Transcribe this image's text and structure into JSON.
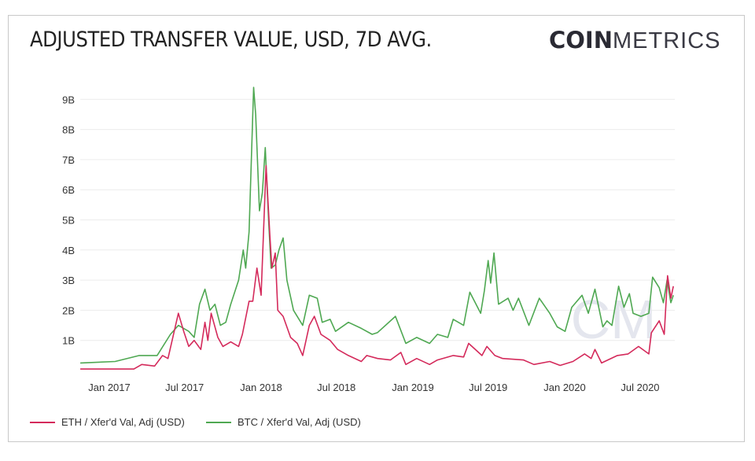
{
  "title": "ADJUSTED TRANSFER VALUE, USD, 7D AVG.",
  "logo": {
    "bold": "COIN",
    "light": "METRICS"
  },
  "watermark": "CM",
  "chart_data": {
    "type": "line",
    "title": "ADJUSTED TRANSFER VALUE, USD, 7D AVG.",
    "xlabel": "",
    "ylabel": "",
    "ylim": [
      0,
      9.6
    ],
    "xlim": [
      "2016-10-23",
      "2020-09-19"
    ],
    "y_unit": "billions USD",
    "y_ticks": [
      {
        "v": 1,
        "label": "1B"
      },
      {
        "v": 2,
        "label": "2B"
      },
      {
        "v": 3,
        "label": "3B"
      },
      {
        "v": 4,
        "label": "4B"
      },
      {
        "v": 5,
        "label": "5B"
      },
      {
        "v": 6,
        "label": "6B"
      },
      {
        "v": 7,
        "label": "7B"
      },
      {
        "v": 8,
        "label": "8B"
      },
      {
        "v": 9,
        "label": "9B"
      }
    ],
    "x_ticks": [
      {
        "d": "2017-01-01",
        "label": "Jan 2017"
      },
      {
        "d": "2017-07-01",
        "label": "Jul 2017"
      },
      {
        "d": "2018-01-01",
        "label": "Jan 2018"
      },
      {
        "d": "2018-07-01",
        "label": "Jul 2018"
      },
      {
        "d": "2019-01-01",
        "label": "Jan 2019"
      },
      {
        "d": "2019-07-01",
        "label": "Jul 2019"
      },
      {
        "d": "2020-01-01",
        "label": "Jan 2020"
      },
      {
        "d": "2020-07-01",
        "label": "Jul 2020"
      }
    ],
    "grid": true,
    "legend_placement": "bottom-left",
    "series": [
      {
        "name": "ETH / Xfer'd Val, Adj (USD)",
        "color": "#d42a5b",
        "points": [
          [
            "2016-10-23",
            0.05
          ],
          [
            "2017-03-01",
            0.05
          ],
          [
            "2017-03-20",
            0.2
          ],
          [
            "2017-04-20",
            0.15
          ],
          [
            "2017-05-09",
            0.5
          ],
          [
            "2017-05-22",
            0.4
          ],
          [
            "2017-06-16",
            1.9
          ],
          [
            "2017-06-29",
            1.3
          ],
          [
            "2017-07-11",
            0.8
          ],
          [
            "2017-07-24",
            1.0
          ],
          [
            "2017-08-09",
            0.7
          ],
          [
            "2017-08-19",
            1.6
          ],
          [
            "2017-08-26",
            1.0
          ],
          [
            "2017-09-03",
            1.9
          ],
          [
            "2017-09-19",
            1.1
          ],
          [
            "2017-10-01",
            0.8
          ],
          [
            "2017-10-20",
            0.95
          ],
          [
            "2017-11-08",
            0.8
          ],
          [
            "2017-11-17",
            1.2
          ],
          [
            "2017-12-03",
            2.3
          ],
          [
            "2017-12-12",
            2.3
          ],
          [
            "2017-12-22",
            3.4
          ],
          [
            "2018-01-01",
            2.5
          ],
          [
            "2018-01-13",
            6.8
          ],
          [
            "2018-01-22",
            4.5
          ],
          [
            "2018-01-27",
            3.4
          ],
          [
            "2018-02-04",
            3.9
          ],
          [
            "2018-02-10",
            2.0
          ],
          [
            "2018-02-23",
            1.8
          ],
          [
            "2018-03-13",
            1.1
          ],
          [
            "2018-03-29",
            0.9
          ],
          [
            "2018-04-11",
            0.5
          ],
          [
            "2018-04-27",
            1.5
          ],
          [
            "2018-05-09",
            1.8
          ],
          [
            "2018-05-25",
            1.2
          ],
          [
            "2018-06-16",
            1.0
          ],
          [
            "2018-07-04",
            0.7
          ],
          [
            "2018-07-30",
            0.5
          ],
          [
            "2018-08-30",
            0.3
          ],
          [
            "2018-09-12",
            0.5
          ],
          [
            "2018-10-08",
            0.4
          ],
          [
            "2018-11-08",
            0.35
          ],
          [
            "2018-12-03",
            0.6
          ],
          [
            "2018-12-15",
            0.2
          ],
          [
            "2019-01-10",
            0.4
          ],
          [
            "2019-02-10",
            0.2
          ],
          [
            "2019-03-01",
            0.35
          ],
          [
            "2019-04-08",
            0.5
          ],
          [
            "2019-05-03",
            0.45
          ],
          [
            "2019-05-15",
            0.9
          ],
          [
            "2019-06-16",
            0.5
          ],
          [
            "2019-06-28",
            0.8
          ],
          [
            "2019-07-17",
            0.5
          ],
          [
            "2019-08-05",
            0.4
          ],
          [
            "2019-09-24",
            0.35
          ],
          [
            "2019-10-19",
            0.2
          ],
          [
            "2019-11-26",
            0.3
          ],
          [
            "2019-12-21",
            0.17
          ],
          [
            "2020-01-21",
            0.3
          ],
          [
            "2020-02-18",
            0.55
          ],
          [
            "2020-03-05",
            0.4
          ],
          [
            "2020-03-14",
            0.7
          ],
          [
            "2020-03-30",
            0.25
          ],
          [
            "2020-05-07",
            0.5
          ],
          [
            "2020-06-02",
            0.55
          ],
          [
            "2020-06-27",
            0.8
          ],
          [
            "2020-07-22",
            0.55
          ],
          [
            "2020-07-28",
            1.25
          ],
          [
            "2020-08-16",
            1.65
          ],
          [
            "2020-08-28",
            1.2
          ],
          [
            "2020-09-05",
            3.15
          ],
          [
            "2020-09-13",
            2.4
          ],
          [
            "2020-09-19",
            2.8
          ]
        ]
      },
      {
        "name": "BTC / Xfer'd Val, Adj (USD)",
        "color": "#4fa852",
        "points": [
          [
            "2016-10-23",
            0.25
          ],
          [
            "2017-01-15",
            0.3
          ],
          [
            "2017-03-14",
            0.5
          ],
          [
            "2017-04-26",
            0.5
          ],
          [
            "2017-05-28",
            1.2
          ],
          [
            "2017-06-16",
            1.5
          ],
          [
            "2017-07-11",
            1.3
          ],
          [
            "2017-07-24",
            1.1
          ],
          [
            "2017-08-06",
            2.2
          ],
          [
            "2017-08-19",
            2.7
          ],
          [
            "2017-08-31",
            2.0
          ],
          [
            "2017-09-12",
            2.2
          ],
          [
            "2017-09-25",
            1.5
          ],
          [
            "2017-10-08",
            1.6
          ],
          [
            "2017-10-20",
            2.2
          ],
          [
            "2017-11-08",
            3.0
          ],
          [
            "2017-11-19",
            4.0
          ],
          [
            "2017-11-25",
            3.4
          ],
          [
            "2017-12-03",
            4.6
          ],
          [
            "2017-12-14",
            9.4
          ],
          [
            "2017-12-19",
            8.5
          ],
          [
            "2017-12-28",
            5.3
          ],
          [
            "2018-01-04",
            5.9
          ],
          [
            "2018-01-11",
            7.4
          ],
          [
            "2018-01-19",
            5.0
          ],
          [
            "2018-01-25",
            3.4
          ],
          [
            "2018-02-04",
            3.5
          ],
          [
            "2018-02-13",
            4.0
          ],
          [
            "2018-02-23",
            4.4
          ],
          [
            "2018-03-04",
            3.0
          ],
          [
            "2018-03-20",
            2.0
          ],
          [
            "2018-04-11",
            1.5
          ],
          [
            "2018-04-27",
            2.5
          ],
          [
            "2018-05-16",
            2.4
          ],
          [
            "2018-05-28",
            1.6
          ],
          [
            "2018-06-16",
            1.7
          ],
          [
            "2018-06-29",
            1.3
          ],
          [
            "2018-07-30",
            1.6
          ],
          [
            "2018-08-30",
            1.4
          ],
          [
            "2018-09-25",
            1.2
          ],
          [
            "2018-10-08",
            1.26
          ],
          [
            "2018-11-20",
            1.8
          ],
          [
            "2018-12-15",
            0.9
          ],
          [
            "2019-01-10",
            1.1
          ],
          [
            "2019-02-10",
            0.9
          ],
          [
            "2019-03-01",
            1.2
          ],
          [
            "2019-03-26",
            1.1
          ],
          [
            "2019-04-08",
            1.7
          ],
          [
            "2019-05-03",
            1.5
          ],
          [
            "2019-05-18",
            2.6
          ],
          [
            "2019-06-13",
            1.9
          ],
          [
            "2019-06-22",
            2.65
          ],
          [
            "2019-07-01",
            3.65
          ],
          [
            "2019-07-07",
            2.9
          ],
          [
            "2019-07-15",
            3.9
          ],
          [
            "2019-07-26",
            2.2
          ],
          [
            "2019-08-18",
            2.4
          ],
          [
            "2019-08-30",
            2.0
          ],
          [
            "2019-09-12",
            2.4
          ],
          [
            "2019-10-07",
            1.5
          ],
          [
            "2019-11-01",
            2.4
          ],
          [
            "2019-11-26",
            1.9
          ],
          [
            "2019-12-14",
            1.45
          ],
          [
            "2020-01-02",
            1.3
          ],
          [
            "2020-01-18",
            2.1
          ],
          [
            "2020-02-12",
            2.5
          ],
          [
            "2020-02-27",
            1.9
          ],
          [
            "2020-03-14",
            2.7
          ],
          [
            "2020-04-02",
            1.45
          ],
          [
            "2020-04-12",
            1.65
          ],
          [
            "2020-04-24",
            1.5
          ],
          [
            "2020-05-10",
            2.8
          ],
          [
            "2020-05-23",
            2.1
          ],
          [
            "2020-06-05",
            2.55
          ],
          [
            "2020-06-14",
            1.9
          ],
          [
            "2020-07-03",
            1.8
          ],
          [
            "2020-07-22",
            1.9
          ],
          [
            "2020-07-31",
            3.1
          ],
          [
            "2020-08-16",
            2.75
          ],
          [
            "2020-08-26",
            2.25
          ],
          [
            "2020-09-04",
            3.0
          ],
          [
            "2020-09-13",
            2.25
          ],
          [
            "2020-09-19",
            2.5
          ]
        ]
      }
    ]
  }
}
